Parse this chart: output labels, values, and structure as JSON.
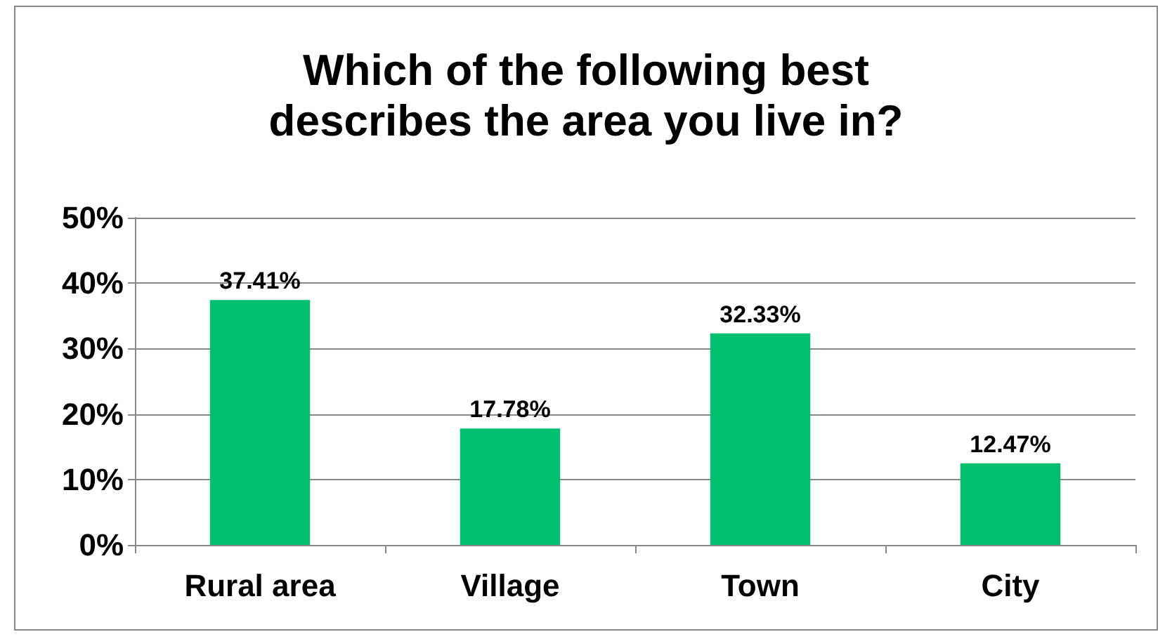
{
  "chart_data": {
    "type": "bar",
    "title": "Which of the following best\ndescribes the area you live in?",
    "categories": [
      "Rural area",
      "Village",
      "Town",
      "City"
    ],
    "values": [
      37.41,
      17.78,
      32.33,
      12.47
    ],
    "value_labels": [
      "37.41%",
      "17.78%",
      "32.33%",
      "12.47%"
    ],
    "color": "#00c070",
    "ylim": [
      0,
      50
    ],
    "yticks": [
      {
        "value": 0,
        "label": "0%"
      },
      {
        "value": 10,
        "label": "10%"
      },
      {
        "value": 20,
        "label": "20%"
      },
      {
        "value": 30,
        "label": "30%"
      },
      {
        "value": 40,
        "label": "40%"
      },
      {
        "value": 50,
        "label": "50%"
      }
    ],
    "grid": "y"
  }
}
